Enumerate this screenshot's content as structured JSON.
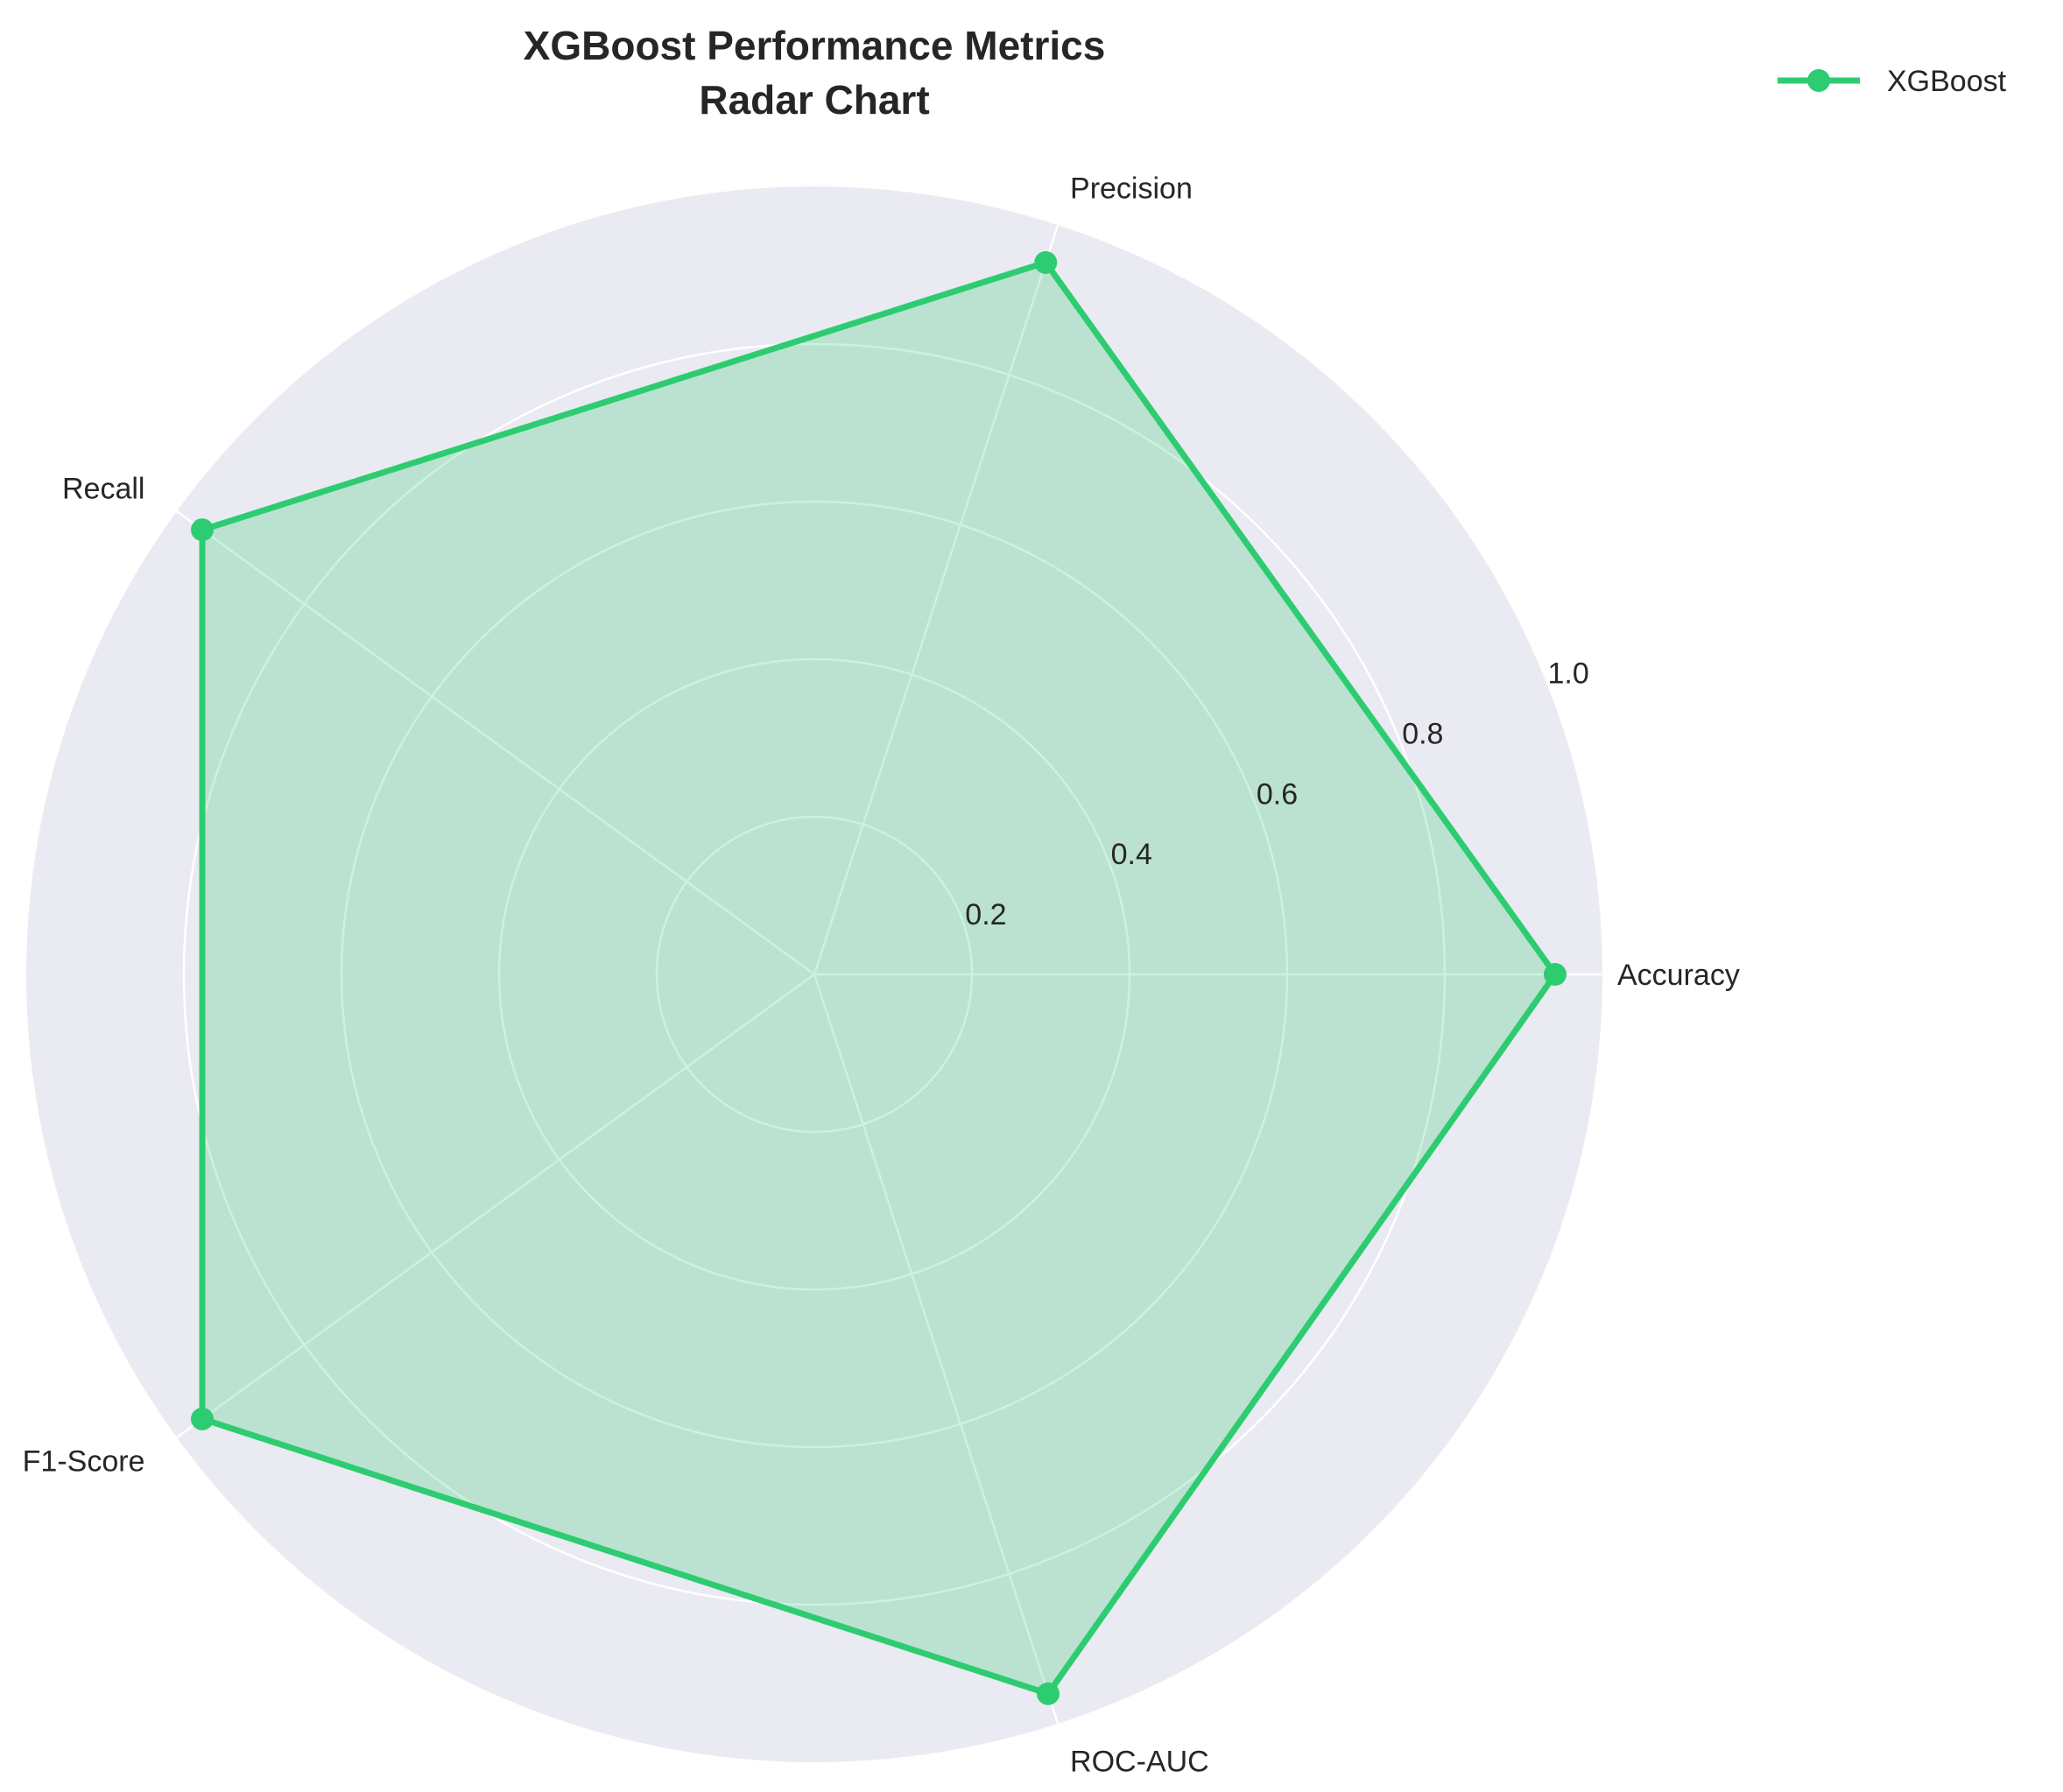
{
  "chart_data": {
    "type": "radar",
    "title_lines": [
      "XGBoost Performance Metrics",
      "Radar Chart"
    ],
    "categories": [
      "Accuracy",
      "Precision",
      "Recall",
      "F1-Score",
      "ROC-AUC"
    ],
    "series": [
      {
        "name": "XGBoost",
        "values": [
          0.94,
          0.95,
          0.96,
          0.96,
          0.96
        ],
        "color": "#2ecc71"
      }
    ],
    "radial_ticks": [
      0.2,
      0.4,
      0.6,
      0.8,
      1.0
    ],
    "radial_tick_labels": [
      "0.2",
      "0.4",
      "0.6",
      "0.8",
      "1.0"
    ],
    "rlim": [
      0,
      1.0
    ],
    "grid": true,
    "legend_position": "top-right"
  },
  "colors": {
    "background": "#eaeaf2",
    "grid": "#ffffff",
    "series": "#2ecc71",
    "text": "#262626"
  }
}
